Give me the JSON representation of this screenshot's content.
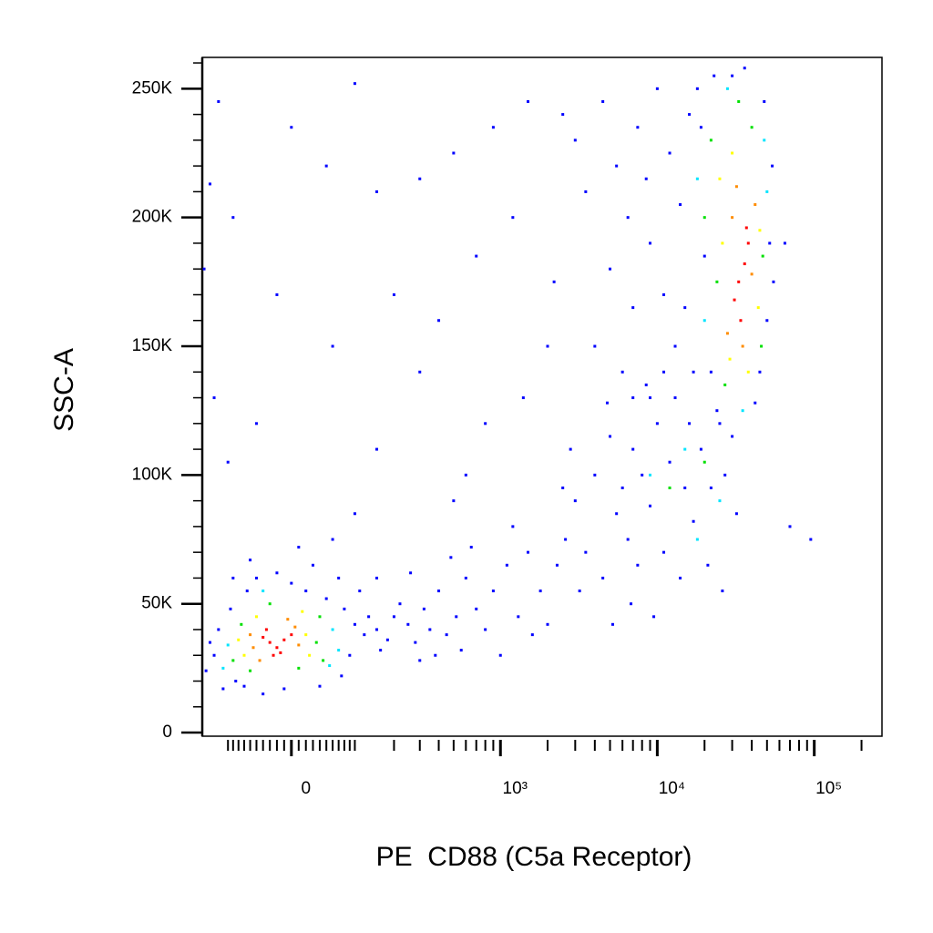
{
  "chart_data": {
    "type": "scatter",
    "xlabel": "PE  CD88 (C5a Receptor)",
    "ylabel": "SSC-A",
    "xscale": "biexponential",
    "xlim": [
      -160,
      270000
    ],
    "ylim": [
      -1400,
      262144
    ],
    "xticks": [
      0,
      {
        "value": 1000,
        "label": "10³"
      },
      {
        "value": 10000,
        "label": "10⁴"
      },
      {
        "value": 100000,
        "label": "10⁵"
      }
    ],
    "xminorticks": [
      -100,
      -90,
      -80,
      -70,
      -60,
      -50,
      -40,
      -30,
      -20,
      -10,
      10,
      20,
      30,
      40,
      50,
      60,
      70,
      80,
      90,
      100,
      200,
      300,
      400,
      500,
      600,
      700,
      800,
      900,
      2000,
      3000,
      4000,
      5000,
      6000,
      7000,
      8000,
      9000,
      20000,
      30000,
      40000,
      50000,
      60000,
      70000,
      80000,
      90000,
      200000
    ],
    "yticks": [
      0,
      {
        "value": 50000,
        "label": "50K"
      },
      {
        "value": 100000,
        "label": "100K"
      },
      {
        "value": 150000,
        "label": "150K"
      },
      {
        "value": 200000,
        "label": "200K"
      },
      {
        "value": 250000,
        "label": "250K"
      }
    ],
    "yminorticks": [
      10000,
      20000,
      30000,
      40000,
      60000,
      70000,
      80000,
      90000,
      110000,
      120000,
      130000,
      140000,
      160000,
      170000,
      180000,
      190000,
      210000,
      220000,
      230000,
      240000,
      260000
    ],
    "series": [
      {
        "color": "#0000ff",
        "x": [
          -130,
          -120,
          -95,
          -85,
          -65,
          -50,
          -20,
          0,
          20,
          50,
          80,
          100,
          120,
          90,
          75,
          40,
          -10,
          -40,
          -70,
          -110,
          -140,
          -150,
          130,
          150,
          160,
          110,
          70,
          30,
          -60,
          -90,
          10,
          60,
          150,
          200,
          180,
          220,
          250,
          280,
          320,
          350,
          400,
          450,
          520,
          600,
          700,
          800,
          900,
          1100,
          1300,
          1500,
          1800,
          2000,
          2300,
          2600,
          260,
          300,
          380,
          480,
          560,
          650,
          1000,
          1200,
          1600,
          3000,
          3500,
          4000,
          4500,
          5000,
          5500,
          6000,
          6500,
          7000,
          7500,
          8000,
          9000,
          10000,
          11000,
          12000,
          13000,
          14000,
          15000,
          16000,
          17000,
          19000,
          21000,
          22000,
          24000,
          26000,
          27000,
          30000,
          32000,
          3200,
          4800,
          6800,
          8500,
          9500,
          2800,
          2500,
          5200,
          11000,
          7000,
          3000,
          3500,
          4500,
          5500,
          6500,
          7500,
          8500,
          10000,
          12000,
          14000,
          16000,
          5000,
          7000,
          9000,
          11000,
          13000,
          4000,
          2500,
          2200,
          6000,
          18000,
          20000,
          15000,
          17000,
          23000,
          9000,
          52000,
          55000,
          50000,
          54000,
          45000,
          22000,
          19000,
          36000,
          30000,
          42000,
          25000,
          48000,
          -120,
          0,
          100,
          -140,
          -90,
          50,
          150,
          300,
          500,
          900,
          1500,
          -155,
          -20,
          200,
          400,
          700,
          1200,
          60,
          300,
          800,
          -50,
          150,
          600,
          100,
          -100,
          2000,
          1400,
          65000,
          70000,
          95000,
          500,
          -130
        ],
        "values": [
          30000,
          40000,
          48000,
          20000,
          55000,
          60000,
          62000,
          58000,
          55000,
          52000,
          48000,
          42000,
          38000,
          30000,
          22000,
          18000,
          17000,
          15000,
          18000,
          17000,
          35000,
          24000,
          45000,
          40000,
          32000,
          55000,
          60000,
          65000,
          67000,
          60000,
          72000,
          75000,
          60000,
          45000,
          36000,
          50000,
          42000,
          35000,
          48000,
          40000,
          55000,
          38000,
          45000,
          60000,
          48000,
          40000,
          55000,
          65000,
          45000,
          70000,
          55000,
          42000,
          65000,
          75000,
          62000,
          28000,
          30000,
          68000,
          32000,
          72000,
          30000,
          80000,
          38000,
          90000,
          70000,
          100000,
          60000,
          115000,
          85000,
          95000,
          75000,
          110000,
          65000,
          100000,
          88000,
          120000,
          70000,
          105000,
          130000,
          60000,
          95000,
          120000,
          82000,
          110000,
          65000,
          95000,
          125000,
          55000,
          100000,
          115000,
          85000,
          55000,
          128000,
          50000,
          135000,
          45000,
          110000,
          95000,
          42000,
          140000,
          130000,
          230000,
          210000,
          245000,
          220000,
          200000,
          235000,
          215000,
          250000,
          225000,
          205000,
          240000,
          180000,
          165000,
          190000,
          170000,
          150000,
          150000,
          240000,
          175000,
          140000,
          250000,
          185000,
          165000,
          140000,
          255000,
          130000,
          190000,
          175000,
          160000,
          220000,
          140000,
          140000,
          235000,
          258000,
          255000,
          128000,
          120000,
          245000,
          245000,
          235000,
          252000,
          213000,
          200000,
          220000,
          210000,
          215000,
          225000,
          235000,
          245000,
          180000,
          170000,
          170000,
          160000,
          185000,
          200000,
          150000,
          140000,
          120000,
          120000,
          110000,
          100000,
          85000,
          105000,
          150000,
          130000,
          190000,
          80000,
          75000,
          90000,
          130000
        ]
      },
      {
        "color": "#00e5ff",
        "x": [
          -100,
          60,
          -40,
          55,
          -110,
          70,
          20000,
          50000,
          18000,
          35000,
          48000,
          28000,
          15000,
          25000,
          9000,
          18000
        ],
        "values": [
          34000,
          40000,
          55000,
          26000,
          25000,
          32000,
          160000,
          210000,
          215000,
          125000,
          230000,
          250000,
          110000,
          90000,
          100000,
          75000
        ]
      },
      {
        "color": "#00e000",
        "x": [
          -90,
          -75,
          35,
          40,
          -60,
          10,
          45,
          -30,
          24000,
          47000,
          22000,
          40000,
          27000,
          46000,
          33000,
          20000,
          20000,
          12000
        ],
        "values": [
          28000,
          42000,
          35000,
          45000,
          24000,
          25000,
          28000,
          50000,
          175000,
          185000,
          230000,
          235000,
          135000,
          150000,
          245000,
          200000,
          105000,
          95000
        ]
      },
      {
        "color": "#ffff00",
        "x": [
          -70,
          20,
          -50,
          25,
          -80,
          15,
          26000,
          44000,
          30000,
          45000,
          29000,
          38000,
          25000
        ],
        "values": [
          30000,
          38000,
          45000,
          30000,
          36000,
          47000,
          190000,
          165000,
          225000,
          195000,
          145000,
          140000,
          215000
        ]
      },
      {
        "color": "#ff8c00",
        "x": [
          -55,
          5,
          -45,
          10,
          -5,
          -60,
          30000,
          40000,
          28000,
          42000,
          35000,
          32000
        ],
        "values": [
          33000,
          41000,
          28000,
          34000,
          44000,
          38000,
          200000,
          178000,
          155000,
          205000,
          150000,
          212000
        ]
      },
      {
        "color": "#ff0000",
        "x": [
          -30,
          -20,
          -40,
          -10,
          -25,
          -35,
          -15,
          0,
          33000,
          36000,
          31000,
          38000,
          34000,
          37000
        ],
        "values": [
          35000,
          33000,
          37000,
          36000,
          30000,
          40000,
          31000,
          38000,
          175000,
          182000,
          168000,
          190000,
          160000,
          196000
        ]
      }
    ]
  }
}
